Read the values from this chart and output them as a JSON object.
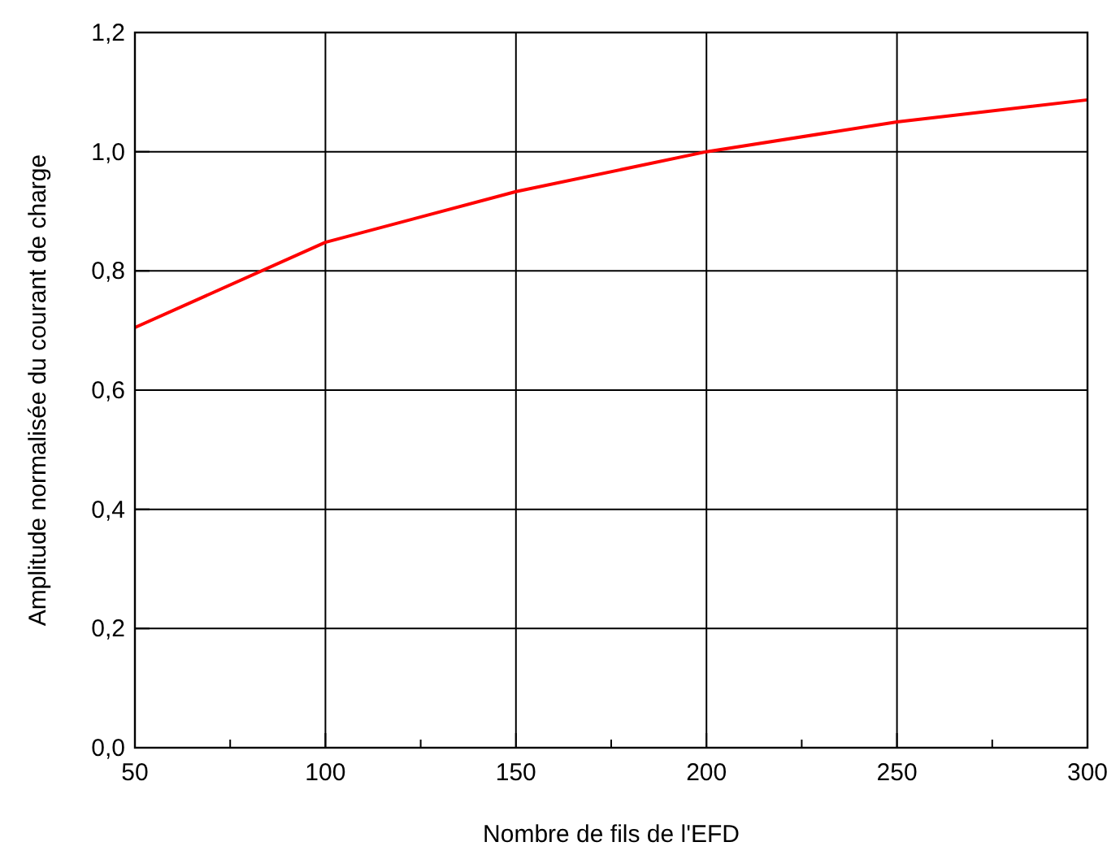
{
  "chart_data": {
    "type": "line",
    "xlabel": "Nombre de fils de l'EFD",
    "ylabel": "Amplitude normalisée du courant de charge",
    "x": [
      50,
      100,
      150,
      200,
      250,
      300
    ],
    "series": [
      {
        "color": "#ff0000",
        "values": [
          0.705,
          0.848,
          0.933,
          1.0,
          1.05,
          1.087
        ]
      }
    ],
    "xlim": [
      50,
      300
    ],
    "xticks": [
      50,
      {
        "value": 75,
        "label": null
      },
      100,
      {
        "value": 125,
        "label": null
      },
      150,
      {
        "value": 175,
        "label": null
      },
      200,
      {
        "value": 225,
        "label": null
      },
      250,
      {
        "value": 275,
        "label": null
      },
      300
    ],
    "ylim": [
      0,
      1.2
    ],
    "yticks": [
      {
        "value": 0,
        "label": "0,0"
      },
      {
        "value": 0.2,
        "label": "0,2"
      },
      {
        "value": 0.4,
        "label": "0,4"
      },
      {
        "value": 0.6,
        "label": "0,6"
      },
      {
        "value": 0.8,
        "label": "0,8"
      },
      {
        "value": 1.0,
        "label": "1,0"
      },
      {
        "value": 1.2,
        "label": "1,2"
      }
    ],
    "grid": true,
    "marker": "none",
    "line_style": "solid"
  }
}
